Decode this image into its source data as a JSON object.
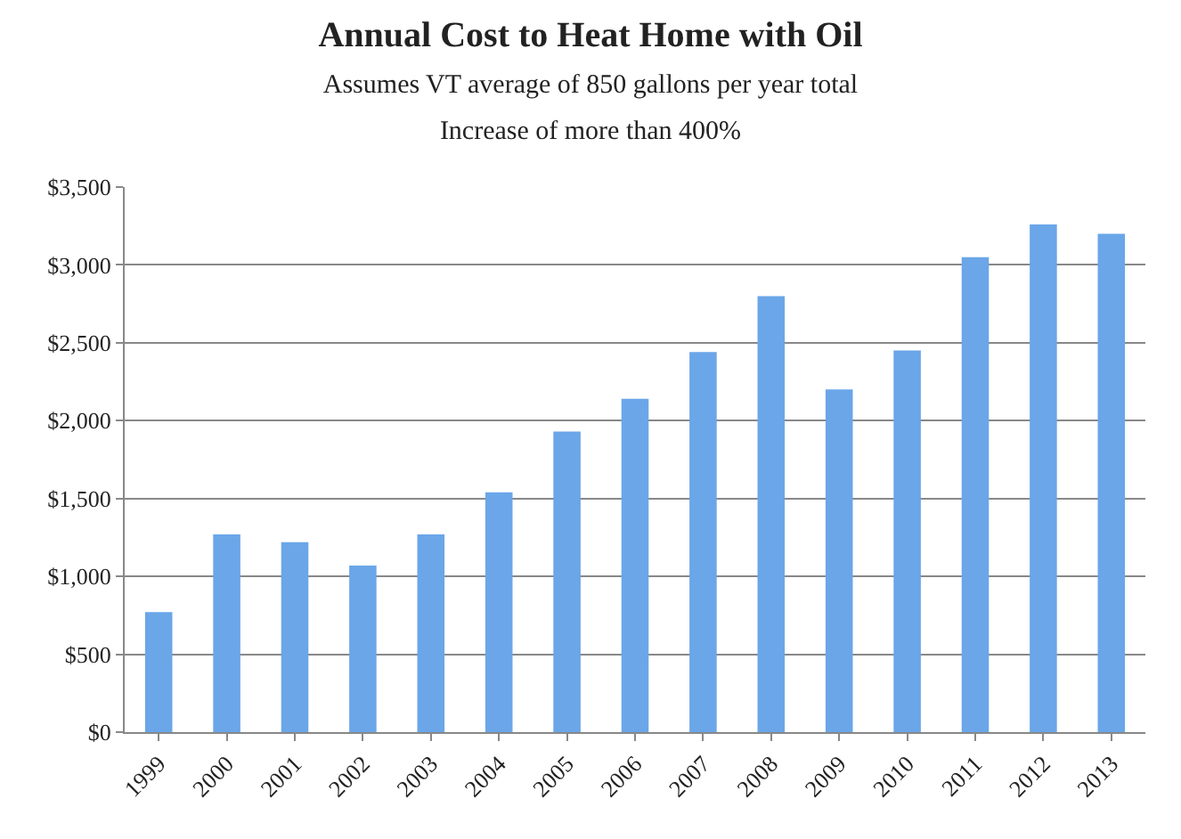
{
  "chart_data": {
    "type": "bar",
    "title": "Annual Cost to Heat Home with Oil",
    "subtitle": "Assumes VT average of 850 gallons per year total\nIncrease of more than 400%",
    "categories": [
      "1999",
      "2000",
      "2001",
      "2002",
      "2003",
      "2004",
      "2005",
      "2006",
      "2007",
      "2008",
      "2009",
      "2010",
      "2011",
      "2012",
      "2013"
    ],
    "values": [
      770,
      1270,
      1220,
      1070,
      1270,
      1540,
      1930,
      2140,
      2440,
      2800,
      2200,
      2450,
      3050,
      3260,
      3200
    ],
    "color": "#6aa6e8",
    "ylim": [
      0,
      3500
    ],
    "yticks": [
      {
        "value": 0,
        "label": "$0"
      },
      {
        "value": 500,
        "label": "$500"
      },
      {
        "value": 1000,
        "label": "$1,000"
      },
      {
        "value": 1500,
        "label": "$1,500"
      },
      {
        "value": 2000,
        "label": "$2,000"
      },
      {
        "value": 2500,
        "label": "$2,500"
      },
      {
        "value": 3000,
        "label": "$3,000"
      },
      {
        "value": 3500,
        "label": "$3,500"
      }
    ],
    "grid": "y"
  }
}
